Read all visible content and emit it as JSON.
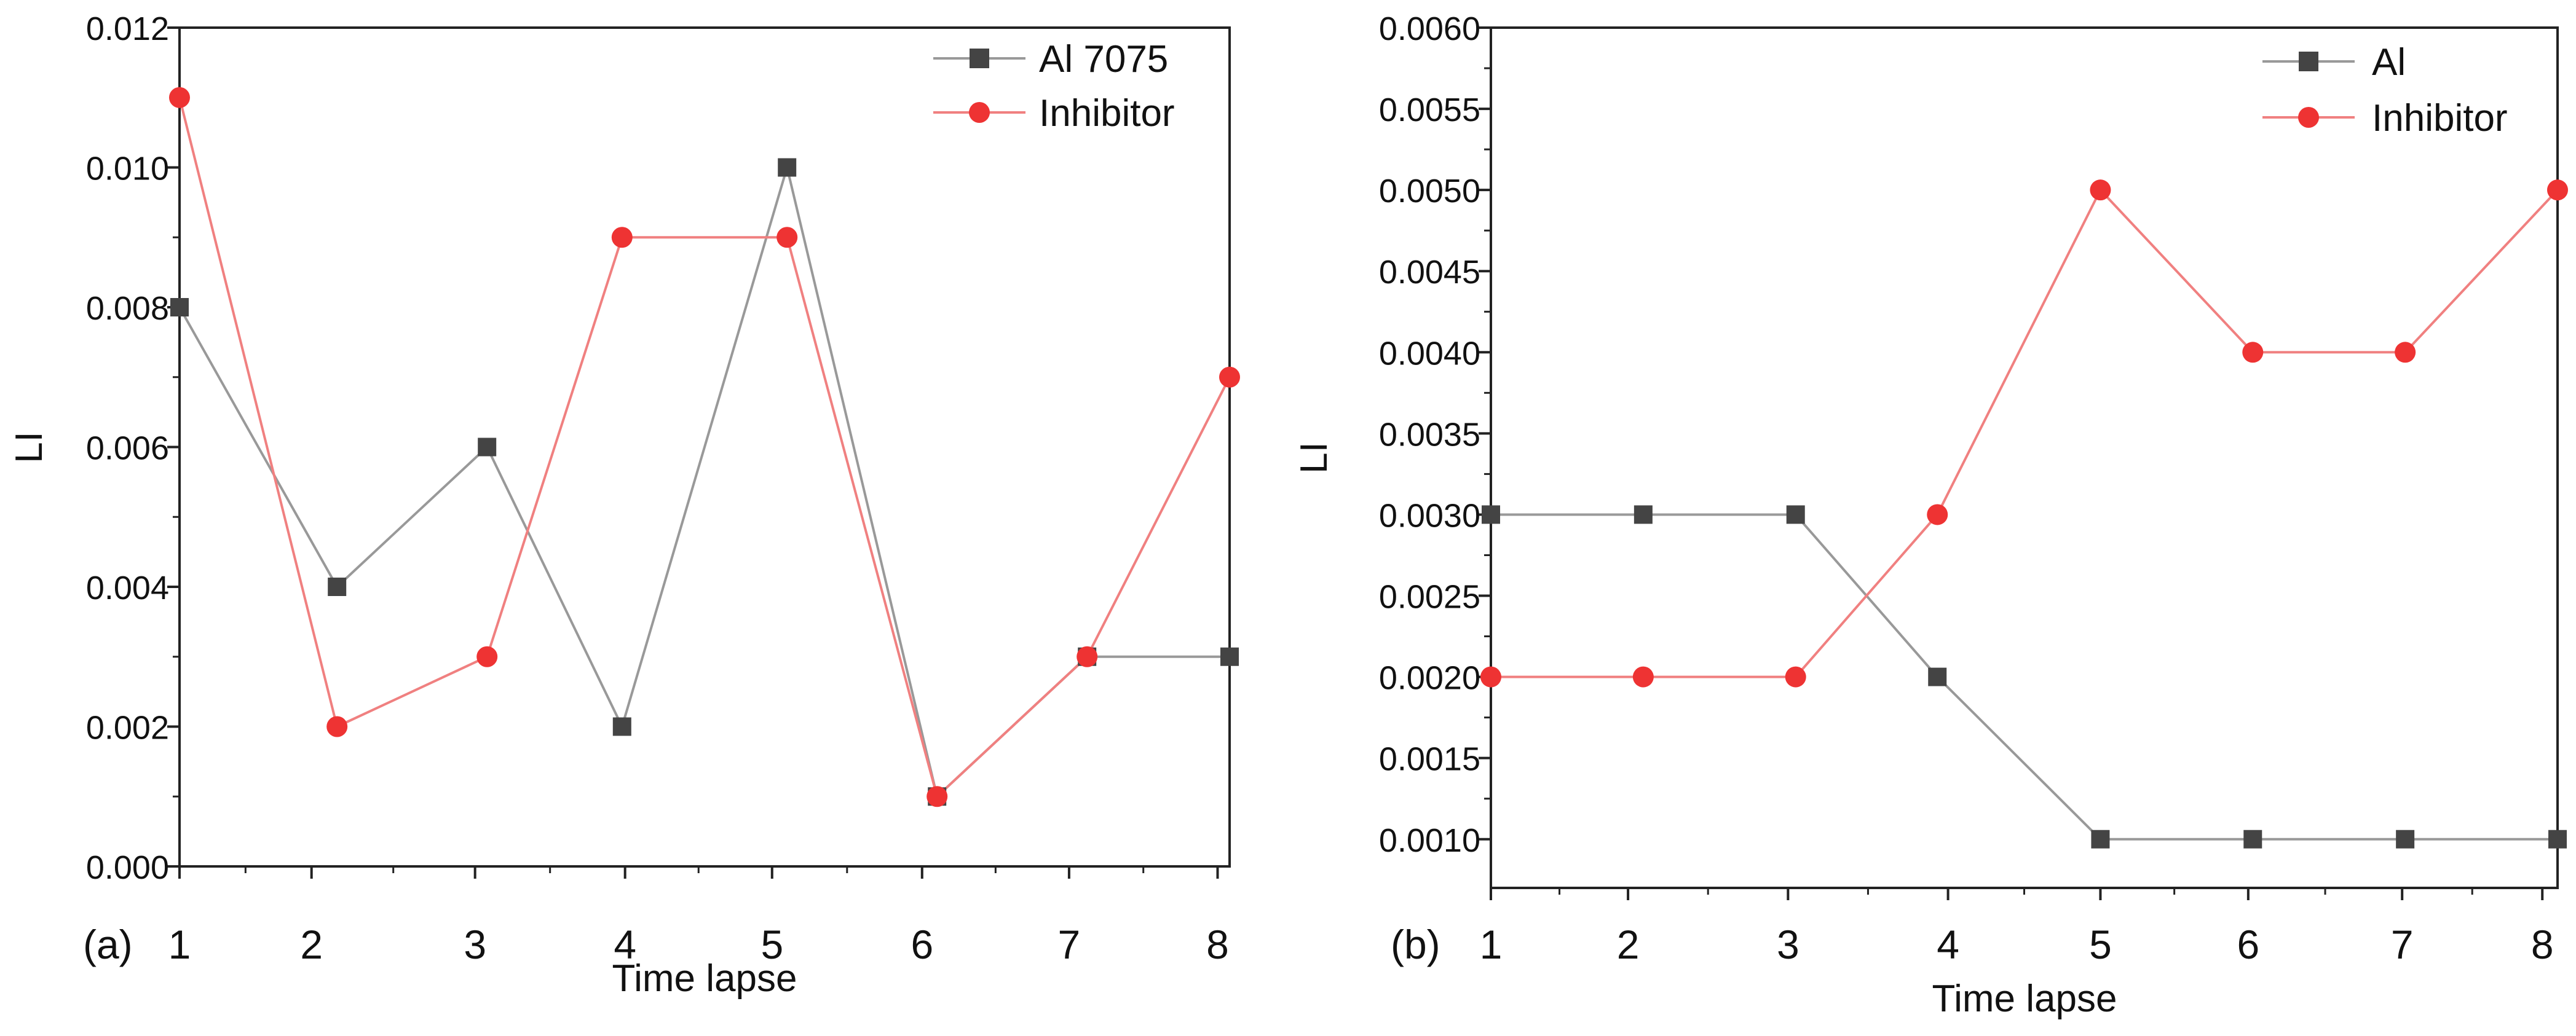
{
  "chart_data": [
    {
      "panel_label": "(a)",
      "type": "line",
      "title": "",
      "xlabel": "Time lapse",
      "ylabel": "LI",
      "xlim": [
        1,
        8
      ],
      "ylim": [
        0,
        0.012
      ],
      "xticks": [
        "1",
        "2",
        "3",
        "4",
        "5",
        "6",
        "7",
        "8"
      ],
      "xtick_positions": [
        1,
        1.88,
        2.97,
        3.97,
        4.95,
        5.95,
        6.93,
        7.92
      ],
      "yticks": [
        "0.000",
        "0.002",
        "0.004",
        "0.006",
        "0.008",
        "0.010",
        "0.012"
      ],
      "ytick_values": [
        0,
        0.002,
        0.004,
        0.006,
        0.008,
        0.01,
        0.012
      ],
      "legend_position": "top-right",
      "series": [
        {
          "name": "Al 7075",
          "marker": "square",
          "color": "#444444",
          "line_color": "#999999",
          "x": [
            1,
            2.05,
            3.05,
            3.95,
            5.05,
            6.05,
            7.05,
            8.05
          ],
          "values": [
            0.008,
            0.004,
            0.006,
            0.002,
            0.01,
            0.001,
            0.003,
            0.003
          ]
        },
        {
          "name": "Inhibitor",
          "marker": "circle",
          "color": "#ee3333",
          "line_color": "#f08080",
          "x": [
            1,
            2.05,
            3.05,
            3.95,
            5.05,
            6.05,
            7.05,
            8.05
          ],
          "values": [
            0.011,
            0.002,
            0.003,
            0.009,
            0.009,
            0.001,
            0.003,
            0.007
          ]
        }
      ]
    },
    {
      "panel_label": "(b)",
      "type": "line",
      "title": "",
      "xlabel": "Time lapse",
      "ylabel": "LI",
      "xlim": [
        1,
        8
      ],
      "ylim": [
        0.0007,
        0.006
      ],
      "xticks": [
        "1",
        "2",
        "3",
        "4",
        "5",
        "6",
        "7",
        "8"
      ],
      "xtick_positions": [
        1,
        1.9,
        2.95,
        4.0,
        5.0,
        5.97,
        6.98,
        7.9
      ],
      "yticks": [
        "0.0010",
        "0.0015",
        "0.0020",
        "0.0025",
        "0.0030",
        "0.0035",
        "0.0040",
        "0.0045",
        "0.0050",
        "0.0055",
        "0.0060"
      ],
      "ytick_values": [
        0.001,
        0.0015,
        0.002,
        0.0025,
        0.003,
        0.0035,
        0.004,
        0.0045,
        0.005,
        0.0055,
        0.006
      ],
      "legend_position": "top-right",
      "series": [
        {
          "name": "Al",
          "marker": "square",
          "color": "#444444",
          "line_color": "#999999",
          "x": [
            1,
            2.0,
            3.0,
            3.93,
            5.0,
            6.0,
            7.0,
            8.0
          ],
          "values": [
            0.003,
            0.003,
            0.003,
            0.002,
            0.001,
            0.001,
            0.001,
            0.001
          ]
        },
        {
          "name": "Inhibitor",
          "marker": "circle",
          "color": "#ee3333",
          "line_color": "#f08080",
          "x": [
            1,
            2.0,
            3.0,
            3.93,
            5.0,
            6.0,
            7.0,
            8.0
          ],
          "values": [
            0.002,
            0.002,
            0.002,
            0.003,
            0.005,
            0.004,
            0.004,
            0.005
          ]
        }
      ]
    }
  ]
}
